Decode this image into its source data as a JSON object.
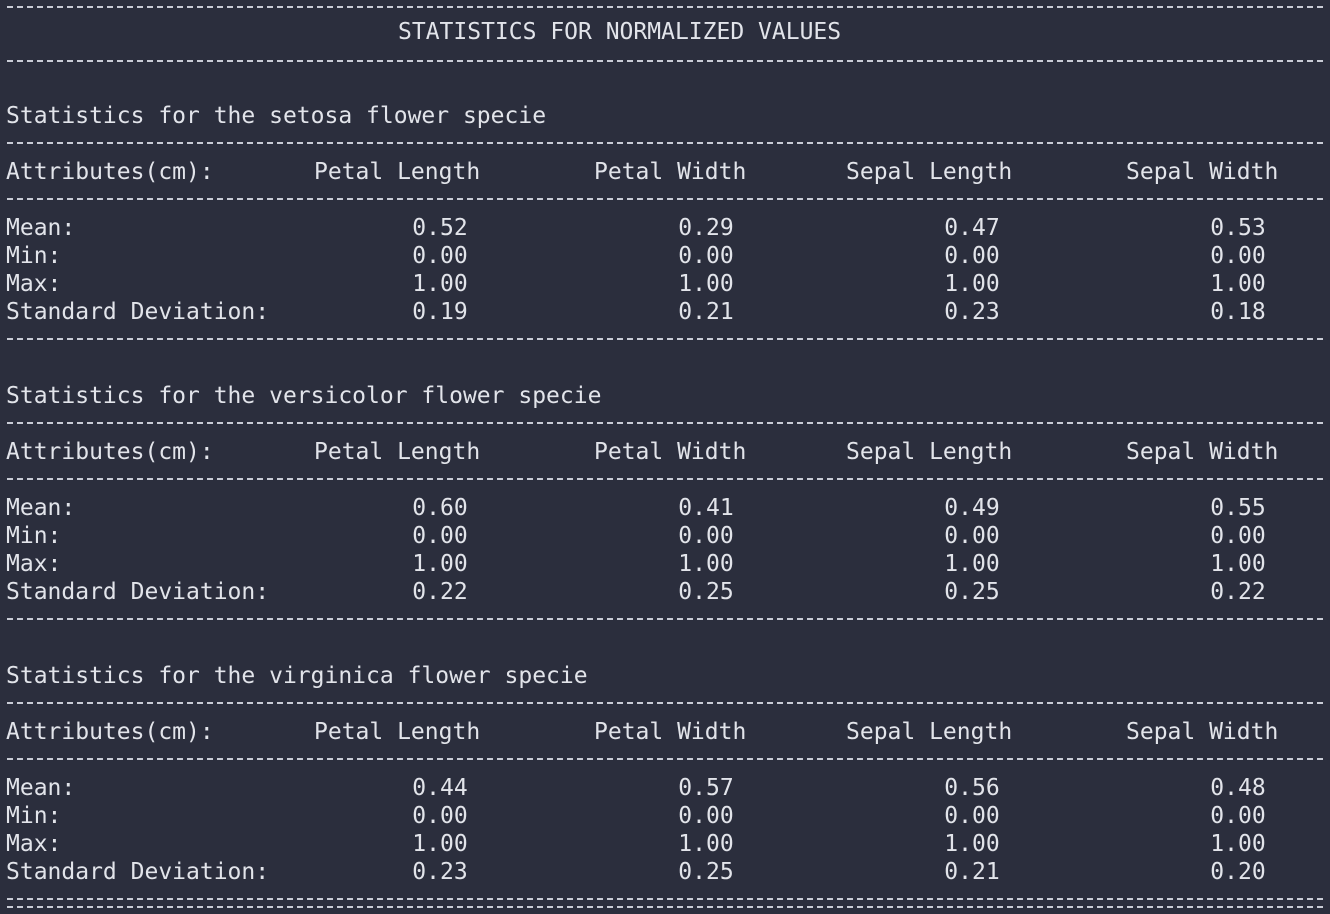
{
  "title": "STATISTICS FOR NORMALIZED VALUES",
  "columns_label": "Attributes(cm):",
  "columns": [
    "Petal Length",
    "Petal Width",
    "Sepal Length",
    "Sepal Width"
  ],
  "row_labels": [
    "Mean:",
    "Min:",
    "Max:",
    "Standard Deviation:"
  ],
  "sections": [
    {
      "heading": "Statistics for the setosa flower specie",
      "rows": [
        [
          "0.52",
          "0.29",
          "0.47",
          "0.53"
        ],
        [
          "0.00",
          "0.00",
          "0.00",
          "0.00"
        ],
        [
          "1.00",
          "1.00",
          "1.00",
          "1.00"
        ],
        [
          "0.19",
          "0.21",
          "0.23",
          "0.18"
        ]
      ]
    },
    {
      "heading": "Statistics for the versicolor flower specie",
      "rows": [
        [
          "0.60",
          "0.41",
          "0.49",
          "0.55"
        ],
        [
          "0.00",
          "0.00",
          "0.00",
          "0.00"
        ],
        [
          "1.00",
          "1.00",
          "1.00",
          "1.00"
        ],
        [
          "0.22",
          "0.25",
          "0.25",
          "0.22"
        ]
      ]
    },
    {
      "heading": "Statistics for the virginica flower specie",
      "rows": [
        [
          "0.44",
          "0.57",
          "0.56",
          "0.48"
        ],
        [
          "0.00",
          "0.00",
          "0.00",
          "0.00"
        ],
        [
          "1.00",
          "1.00",
          "1.00",
          "1.00"
        ],
        [
          "0.23",
          "0.25",
          "0.21",
          "0.20"
        ]
      ]
    }
  ],
  "colors": {
    "background": "#2b2e3d",
    "text": "#e2e4ea",
    "rule": "#c9ccd6"
  }
}
